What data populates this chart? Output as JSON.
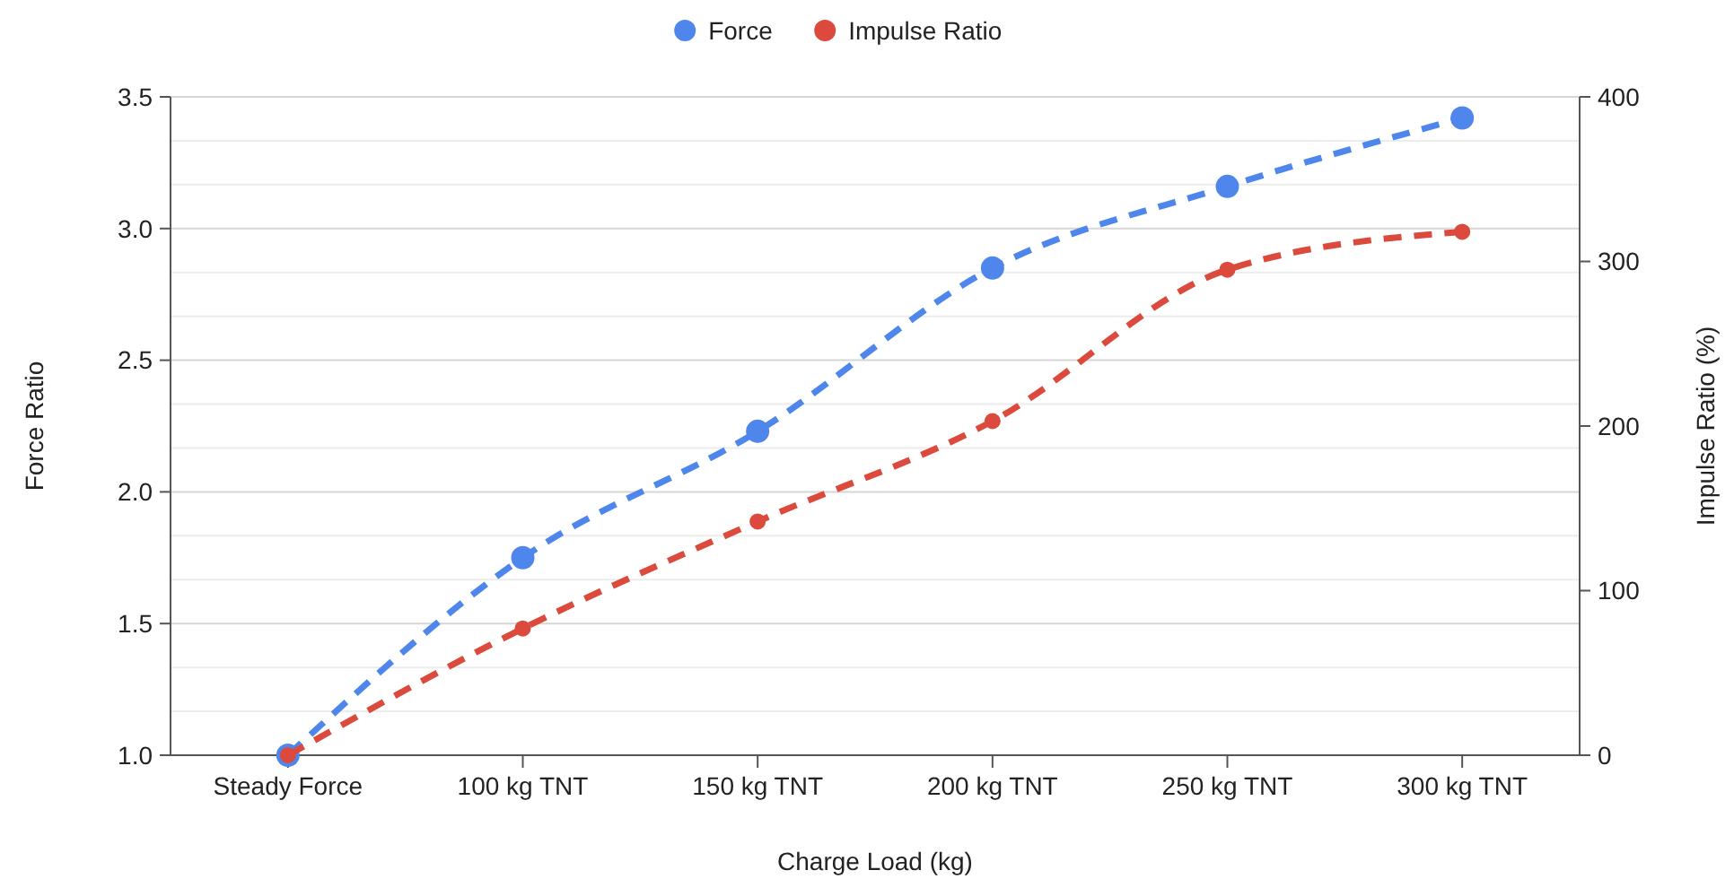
{
  "chart_data": {
    "type": "line",
    "xlabel": "Charge Load (kg)",
    "ylabel": "Force Ratio",
    "y2label": "Impulse Ratio (%)",
    "categories": [
      "Steady Force",
      "100 kg TNT",
      "150 kg TNT",
      "200 kg TNT",
      "250 kg TNT",
      "300 kg TNT"
    ],
    "series": [
      {
        "name": "Force",
        "color": "#4e86ec",
        "values": [
          1.0,
          1.75,
          2.23,
          2.85,
          3.16,
          3.42
        ]
      },
      {
        "name": "Impulse Ratio",
        "color": "#dc4a3d",
        "axis": "y2",
        "values": [
          0,
          77,
          142,
          203,
          295,
          318
        ]
      }
    ],
    "ylim": [
      1.0,
      3.5
    ],
    "yticks": [
      {
        "value": 1.0,
        "label": "1.0"
      },
      {
        "value": 1.5,
        "label": "1.5"
      },
      {
        "value": 2.0,
        "label": "2.0"
      },
      {
        "value": 2.5,
        "label": "2.5"
      },
      {
        "value": 3.0,
        "label": "3.0"
      },
      {
        "value": 3.5,
        "label": "3.5"
      }
    ],
    "y2lim": [
      0,
      400
    ],
    "y2ticks": [
      0,
      100,
      200,
      300,
      400
    ],
    "grid": "y",
    "legend": "top",
    "marker": "circle",
    "line_style": "dashed"
  }
}
